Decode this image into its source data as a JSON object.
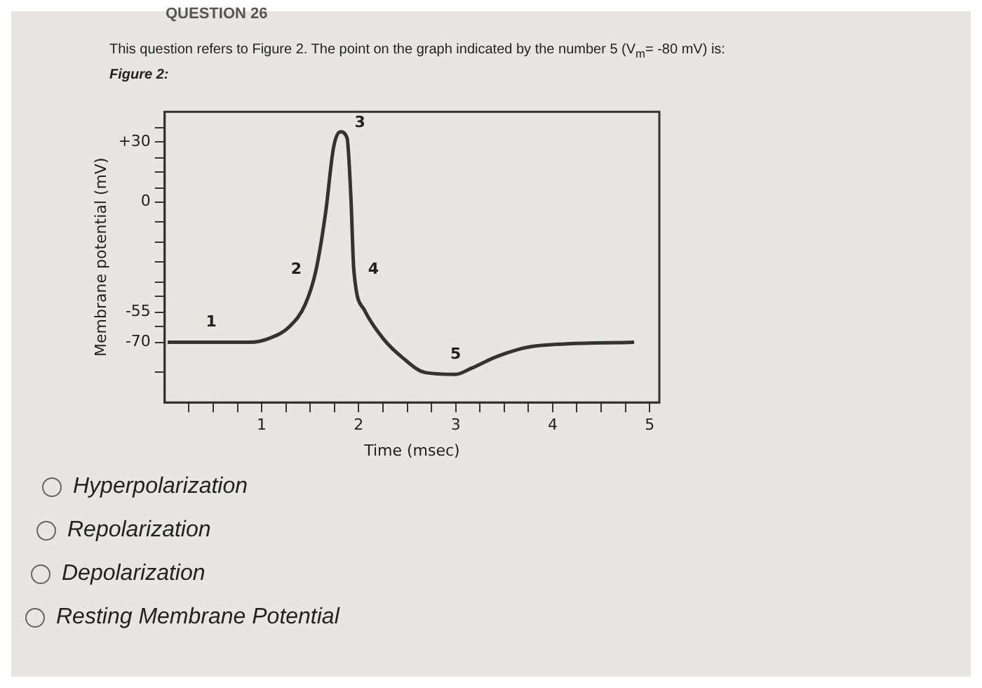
{
  "chart_data": {
    "type": "line",
    "title": "This question refers to Figure 2. The point on the graph indicated by the number 5 (V$_{m}$= -80 mV) is:",
    "subtitle": "Figure 2:",
    "xlabel": "Time (msec)",
    "ylabel": "Membrane potential (mV)",
    "xlim": [
      0,
      5.1
    ],
    "xticks": [
      {
        "value": 0.25,
        "label": null
      },
      {
        "value": 0.5,
        "label": null
      },
      {
        "value": 0.75,
        "label": null
      },
      1,
      {
        "value": 1.25,
        "label": null
      },
      {
        "value": 1.5,
        "label": null
      },
      {
        "value": 1.75,
        "label": null
      },
      2,
      {
        "value": 2.25,
        "label": null
      },
      {
        "value": 2.5,
        "label": null
      },
      {
        "value": 2.75,
        "label": null
      },
      3,
      {
        "value": 3.25,
        "label": null
      },
      {
        "value": 3.5,
        "label": null
      },
      {
        "value": 3.75,
        "label": null
      },
      4,
      {
        "value": 4.25,
        "label": null
      },
      {
        "value": 4.5,
        "label": null
      },
      {
        "value": 4.75,
        "label": null
      },
      5
    ],
    "ylim": [
      -100,
      45
    ],
    "yticks": [
      {
        "value": -85,
        "label": null
      },
      {
        "value": -70,
        "label": "-70"
      },
      {
        "value": -62,
        "label": null
      },
      {
        "value": -55,
        "label": "-55"
      },
      {
        "value": -47,
        "label": null
      },
      {
        "value": -40,
        "label": null
      },
      {
        "value": -30,
        "label": null
      },
      {
        "value": -20,
        "label": null
      },
      {
        "value": -10,
        "label": null
      },
      {
        "value": 0,
        "label": "0"
      },
      {
        "value": 7,
        "label": null
      },
      {
        "value": 15,
        "label": null
      },
      {
        "value": 22,
        "label": null
      },
      {
        "value": 30,
        "label": "+30"
      },
      {
        "value": 37,
        "label": null
      }
    ],
    "marker": "none",
    "line_style": "solid",
    "series": [
      {
        "color": "#333333",
        "x": [
          0.03,
          0.48,
          0.87,
          1.08,
          1.29,
          1.45,
          1.56,
          1.66,
          1.74,
          1.81,
          1.88,
          1.92,
          1.95,
          2.06,
          2.25,
          2.46,
          2.68,
          3.0,
          3.16,
          3.43,
          3.8,
          4.84
        ],
        "values": [
          -70,
          -70,
          -70,
          -68,
          -62,
          -51,
          -34,
          -5,
          27,
          35,
          32,
          2,
          -34,
          -54,
          -68,
          -78,
          -85,
          -86,
          -83,
          -77,
          -72,
          -70
        ]
      }
    ],
    "annotations": [
      "QUESTION 26",
      {
        "text": "1",
        "x": 0.48,
        "y": -70
      },
      {
        "text": "2",
        "x": 1.56,
        "y": -34
      },
      {
        "text": "3",
        "x": 1.81,
        "y": 35
      },
      {
        "text": "4",
        "x": 1.95,
        "y": -34
      },
      {
        "text": "5",
        "x": 3.0,
        "y": -86
      },
      "Hyperpolarization",
      "Repolarization",
      "Depolarization",
      "Resting Membrane Potential"
    ]
  }
}
